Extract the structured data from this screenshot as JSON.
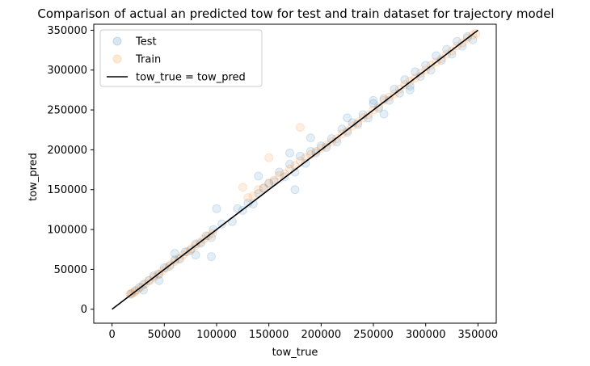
{
  "chart_data": {
    "type": "scatter",
    "title": "Comparison of actual an predicted tow for test and train dataset for trajectory model",
    "xlabel": "tow_true",
    "ylabel": "tow_pred",
    "xlim": [
      -17500,
      367500
    ],
    "ylim": [
      -17500,
      357500
    ],
    "x_ticks": [
      0,
      50000,
      100000,
      150000,
      200000,
      250000,
      300000,
      350000
    ],
    "x_tick_labels": [
      "0",
      "50000",
      "100000",
      "150000",
      "200000",
      "250000",
      "300000",
      "350000"
    ],
    "y_ticks": [
      0,
      50000,
      100000,
      150000,
      200000,
      250000,
      300000,
      350000
    ],
    "y_tick_labels": [
      "0",
      "50000",
      "100000",
      "150000",
      "200000",
      "250000",
      "300000",
      "350000"
    ],
    "grid": false,
    "legend_position": "top-left",
    "series": [
      {
        "name": "Test",
        "color": "#1f77b4",
        "alpha": 0.12,
        "x": [
          18000,
          22000,
          26000,
          30000,
          35000,
          40000,
          45000,
          50000,
          55000,
          60000,
          65000,
          70000,
          75000,
          80000,
          85000,
          90000,
          95000,
          97000,
          80000,
          60000,
          45000,
          30000,
          120000,
          125000,
          130000,
          135000,
          140000,
          145000,
          150000,
          155000,
          160000,
          165000,
          170000,
          175000,
          180000,
          185000,
          190000,
          195000,
          200000,
          205000,
          210000,
          215000,
          220000,
          225000,
          230000,
          235000,
          240000,
          245000,
          250000,
          255000,
          260000,
          265000,
          270000,
          275000,
          280000,
          285000,
          290000,
          295000,
          300000,
          305000,
          310000,
          315000,
          320000,
          325000,
          330000,
          335000,
          340000,
          345000,
          100000,
          105000,
          115000,
          175000,
          190000,
          225000,
          250000,
          285000,
          170000,
          140000,
          260000,
          95000
        ],
        "y": [
          19000,
          23000,
          27000,
          31000,
          36000,
          42000,
          44000,
          52000,
          54000,
          62000,
          63000,
          72000,
          74000,
          82000,
          83000,
          92000,
          90000,
          100000,
          68000,
          70000,
          36000,
          24000,
          126000,
          124000,
          133000,
          132000,
          145000,
          152000,
          158000,
          160000,
          172000,
          166000,
          182000,
          172000,
          192000,
          183000,
          198000,
          196000,
          205000,
          203000,
          214000,
          210000,
          226000,
          222000,
          234000,
          232000,
          244000,
          240000,
          258000,
          252000,
          264000,
          262000,
          276000,
          271000,
          288000,
          280000,
          298000,
          292000,
          306000,
          300000,
          318000,
          312000,
          326000,
          320000,
          336000,
          330000,
          342000,
          338000,
          126000,
          107000,
          110000,
          150000,
          215000,
          240000,
          262000,
          275000,
          196000,
          167000,
          245000,
          66000
        ]
      },
      {
        "name": "Train",
        "color": "#ff7f0e",
        "alpha": 0.12,
        "x": [
          17000,
          19000,
          21000,
          24000,
          28000,
          32000,
          36000,
          40000,
          44000,
          48000,
          52000,
          56000,
          60000,
          64000,
          68000,
          72000,
          76000,
          80000,
          84000,
          88000,
          92000,
          96000,
          130000,
          135000,
          140000,
          145000,
          150000,
          155000,
          160000,
          165000,
          170000,
          175000,
          180000,
          185000,
          190000,
          195000,
          200000,
          205000,
          210000,
          215000,
          220000,
          225000,
          230000,
          235000,
          240000,
          245000,
          250000,
          255000,
          260000,
          265000,
          270000,
          275000,
          280000,
          285000,
          290000,
          295000,
          300000,
          305000,
          310000,
          315000,
          320000,
          325000,
          330000,
          335000,
          340000,
          345000,
          348000,
          180000,
          150000,
          125000
        ],
        "y": [
          19000,
          20000,
          21000,
          24000,
          28000,
          32000,
          36000,
          40000,
          44000,
          48000,
          52000,
          56000,
          60000,
          64000,
          68000,
          72000,
          76000,
          80000,
          84000,
          88000,
          92000,
          95000,
          140000,
          142000,
          150000,
          152000,
          158000,
          162000,
          168000,
          170000,
          176000,
          180000,
          186000,
          190000,
          194000,
          198000,
          202000,
          206000,
          210000,
          214000,
          220000,
          224000,
          230000,
          234000,
          240000,
          244000,
          250000,
          254000,
          262000,
          266000,
          270000,
          276000,
          282000,
          286000,
          290000,
          296000,
          300000,
          306000,
          310000,
          314000,
          320000,
          324000,
          330000,
          334000,
          340000,
          344000,
          346000,
          228000,
          190000,
          153000
        ]
      },
      {
        "name": "tow_true = tow_pred",
        "color": "#000000",
        "kind": "line",
        "x": [
          0,
          350000
        ],
        "y": [
          0,
          350000
        ]
      }
    ]
  }
}
